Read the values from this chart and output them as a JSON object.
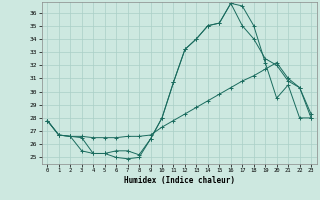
{
  "xlabel": "Humidex (Indice chaleur)",
  "xlim": [
    -0.5,
    23.5
  ],
  "ylim": [
    24.5,
    36.8
  ],
  "yticks": [
    25,
    26,
    27,
    28,
    29,
    30,
    31,
    32,
    33,
    34,
    35,
    36
  ],
  "xticks": [
    0,
    1,
    2,
    3,
    4,
    5,
    6,
    7,
    8,
    9,
    10,
    11,
    12,
    13,
    14,
    15,
    16,
    17,
    18,
    19,
    20,
    21,
    22,
    23
  ],
  "background_color": "#cde8e0",
  "grid_color": "#aacfc7",
  "line_color": "#1a6b5e",
  "line1_x": [
    0,
    1,
    2,
    3,
    4,
    5,
    6,
    7,
    8,
    9,
    10,
    11,
    12,
    13,
    14,
    15,
    16,
    17,
    18,
    19,
    20,
    21,
    22,
    23
  ],
  "line1_y": [
    27.8,
    26.7,
    26.6,
    25.5,
    25.3,
    25.3,
    25.0,
    24.9,
    25.0,
    26.4,
    28.0,
    30.7,
    33.2,
    34.0,
    35.0,
    35.2,
    36.7,
    36.5,
    35.0,
    32.2,
    29.5,
    30.5,
    28.0,
    28.0
  ],
  "line2_x": [
    0,
    1,
    2,
    3,
    4,
    5,
    6,
    7,
    8,
    9,
    10,
    11,
    12,
    13,
    14,
    15,
    16,
    17,
    18,
    19,
    20,
    21,
    22,
    23
  ],
  "line2_y": [
    27.8,
    26.7,
    26.6,
    26.5,
    25.3,
    25.3,
    25.5,
    25.5,
    25.2,
    26.4,
    28.0,
    30.7,
    33.2,
    34.0,
    35.0,
    35.2,
    36.7,
    35.0,
    34.0,
    32.5,
    32.0,
    30.8,
    30.3,
    28.0
  ],
  "line3_x": [
    0,
    1,
    2,
    3,
    4,
    5,
    6,
    7,
    8,
    9,
    10,
    11,
    12,
    13,
    14,
    15,
    16,
    17,
    18,
    19,
    20,
    21,
    22,
    23
  ],
  "line3_y": [
    27.8,
    26.7,
    26.6,
    26.6,
    26.5,
    26.5,
    26.5,
    26.6,
    26.6,
    26.7,
    27.3,
    27.8,
    28.3,
    28.8,
    29.3,
    29.8,
    30.3,
    30.8,
    31.2,
    31.7,
    32.2,
    31.0,
    30.3,
    28.3
  ]
}
